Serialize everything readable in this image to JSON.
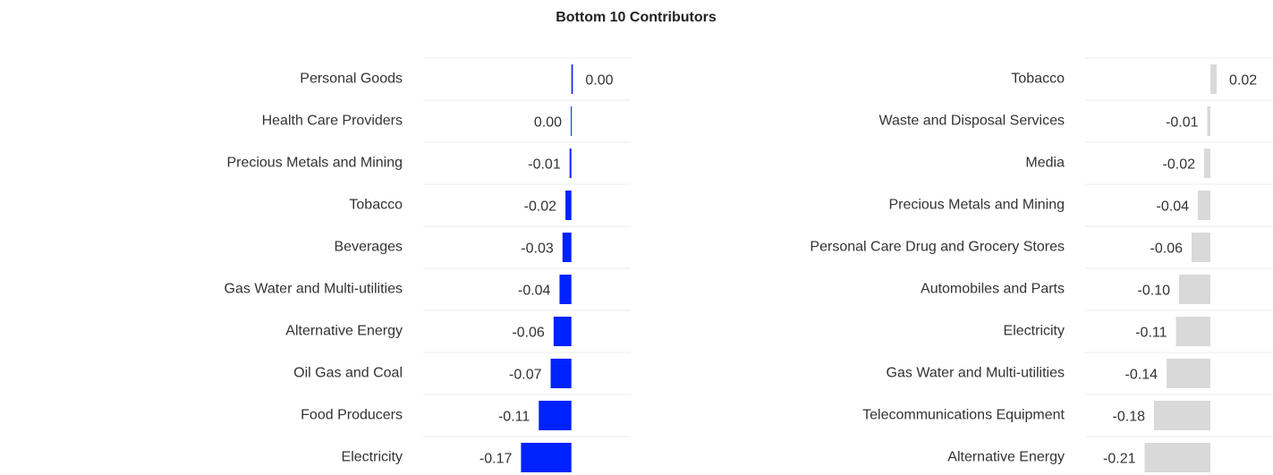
{
  "title": "Bottom 10 Contributors",
  "chart_data": [
    {
      "type": "bar",
      "categories": [
        "Personal Goods",
        "Health Care Providers",
        "Precious Metals and Mining",
        "Tobacco",
        "Beverages",
        "Gas Water and Multi-utilities",
        "Alternative Energy",
        "Oil Gas and Coal",
        "Food Producers",
        "Electricity"
      ],
      "values": [
        0.005,
        -0.002,
        -0.006,
        -0.02,
        -0.03,
        -0.04,
        -0.06,
        -0.07,
        -0.11,
        -0.17
      ],
      "value_labels": [
        "0.00",
        "0.00",
        "-0.01",
        "-0.02",
        "-0.03",
        "-0.04",
        "-0.06",
        "-0.07",
        "-0.11",
        "-0.17"
      ],
      "color": "#0022ff",
      "xlim": [
        -0.5,
        0.2
      ]
    },
    {
      "type": "bar",
      "categories": [
        "Tobacco",
        "Waste and Disposal Services",
        "Media",
        "Precious Metals and Mining",
        "Personal Care Drug and Grocery Stores",
        "Automobiles and Parts",
        "Electricity",
        "Gas Water and Multi-utilities",
        "Telecommunications Equipment",
        "Alternative Energy"
      ],
      "values": [
        0.02,
        -0.01,
        -0.02,
        -0.04,
        -0.06,
        -0.1,
        -0.11,
        -0.14,
        -0.18,
        -0.21
      ],
      "value_labels": [
        "0.02",
        "-0.01",
        "-0.02",
        "-0.04",
        "-0.06",
        "-0.10",
        "-0.11",
        "-0.14",
        "-0.18",
        "-0.21"
      ],
      "color": "#d9d9d9",
      "xlim": [
        -0.4,
        0.2
      ]
    }
  ]
}
